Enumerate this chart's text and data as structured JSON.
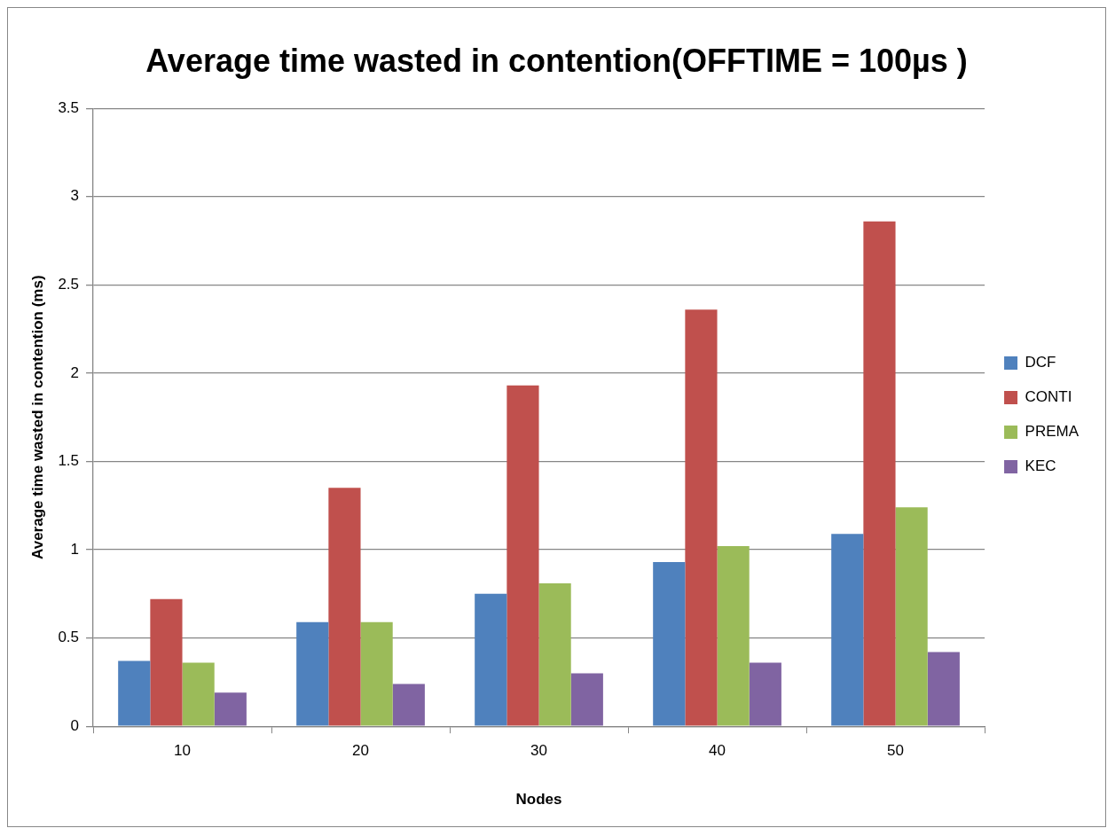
{
  "chart_data": {
    "type": "bar",
    "title": "Average time wasted in contention(OFFTIME = 100µs )",
    "xlabel": "Nodes",
    "ylabel": "Average time wasted in contention (ms)",
    "categories": [
      "10",
      "20",
      "30",
      "40",
      "50"
    ],
    "series": [
      {
        "name": "DCF",
        "color": "#4f81bd",
        "values": [
          0.37,
          0.59,
          0.75,
          0.93,
          1.09
        ]
      },
      {
        "name": "CONTI",
        "color": "#c0504d",
        "values": [
          0.72,
          1.35,
          1.93,
          2.36,
          2.86
        ]
      },
      {
        "name": "PREMA",
        "color": "#9bbb59",
        "values": [
          0.36,
          0.59,
          0.81,
          1.02,
          1.24
        ]
      },
      {
        "name": "KEC",
        "color": "#8064a2",
        "values": [
          0.19,
          0.24,
          0.3,
          0.36,
          0.42
        ]
      }
    ],
    "ylim": [
      0,
      3.5
    ],
    "yticks": [
      0,
      0.5,
      1,
      1.5,
      2,
      2.5,
      3,
      3.5
    ],
    "grid": "y",
    "legend": "right"
  }
}
